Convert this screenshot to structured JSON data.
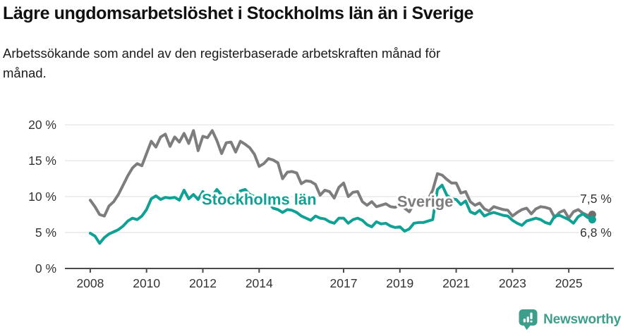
{
  "chart_data": {
    "type": "line",
    "title": "Lägre ungdomsarbetslöshet i Stockholms län än i Sverige",
    "subtitle": "Arbetssökande som andel av den registerbaserade arbetskraften månad för månad.",
    "unit": "%",
    "grid": "horizontal-only",
    "legend": "inline-series-labels",
    "x_axis": {
      "min": 2007.1,
      "max": 2026.6,
      "ticks": [
        {
          "v": 2008,
          "label": "2008"
        },
        {
          "v": 2010,
          "label": "2010"
        },
        {
          "v": 2012,
          "label": "2012"
        },
        {
          "v": 2014,
          "label": "2014"
        },
        {
          "v": 2017,
          "label": "2017"
        },
        {
          "v": 2019,
          "label": "2019"
        },
        {
          "v": 2021,
          "label": "2021"
        },
        {
          "v": 2023,
          "label": "2023"
        },
        {
          "v": 2025,
          "label": "2025"
        }
      ]
    },
    "ylim": [
      0,
      20.5
    ],
    "y_ticks": [
      {
        "v": 0,
        "label": "0 %"
      },
      {
        "v": 5,
        "label": "5 %"
      },
      {
        "v": 10,
        "label": "10 %"
      },
      {
        "v": 15,
        "label": "15 %"
      },
      {
        "v": 20,
        "label": "20 %"
      }
    ],
    "colors": {
      "grid": "#DEDEDE",
      "axis": "#4A4A4A",
      "tick_text": "#333333",
      "value_text": "#333333",
      "sverige": "#7D7D7D",
      "stockholm": "#10A195"
    },
    "series": [
      {
        "id": "sverige",
        "name": "Sverige",
        "color": "#7D7D7D",
        "dot_color": "#6E6E6E",
        "end_dot": true,
        "label": {
          "text": "Sverige",
          "x": 2019.9,
          "y": 8.6
        },
        "end_label": {
          "text": "7,5 %",
          "x": 2025.4,
          "y": 9.1
        },
        "last_value_label": "7,5 %",
        "x_start": 2008.0,
        "x_step_months": 2,
        "values": [
          9.5,
          8.6,
          7.5,
          7.3,
          8.7,
          9.3,
          10.3,
          11.6,
          12.9,
          14.0,
          14.6,
          14.3,
          16.0,
          17.7,
          16.9,
          18.3,
          18.7,
          17.0,
          18.3,
          17.6,
          18.8,
          17.4,
          19.2,
          16.4,
          18.4,
          18.2,
          19.2,
          17.8,
          16.0,
          17.5,
          17.6,
          16.2,
          17.7,
          17.3,
          16.8,
          15.9,
          14.2,
          14.6,
          15.3,
          15.1,
          14.7,
          12.5,
          13.4,
          13.5,
          13.3,
          11.8,
          12.2,
          12.1,
          11.7,
          10.2,
          10.9,
          10.7,
          9.8,
          11.3,
          11.9,
          10.0,
          10.6,
          10.7,
          9.3,
          8.8,
          9.3,
          8.6,
          8.8,
          9.0,
          8.6,
          8.5,
          8.9,
          8.4,
          7.9,
          9.0,
          8.8,
          9.2,
          9.6,
          10.9,
          13.2,
          13.0,
          12.4,
          11.9,
          11.9,
          10.5,
          10.7,
          9.3,
          8.8,
          9.1,
          8.3,
          8.0,
          8.6,
          8.4,
          8.2,
          8.1,
          7.3,
          7.8,
          8.2,
          8.4,
          7.6,
          8.3,
          8.6,
          8.5,
          8.3,
          7.1,
          7.8,
          8.1,
          7.0,
          7.9,
          8.2,
          7.7,
          7.4,
          7.5
        ]
      },
      {
        "id": "stockholm",
        "name": "Stockholms län",
        "color": "#10A195",
        "dot_color": "#10A195",
        "end_dot": true,
        "label": {
          "text": "Stockholms län",
          "x": 2014.0,
          "y": 8.9
        },
        "end_label": {
          "text": "6,8 %",
          "x": 2025.4,
          "y": 4.4
        },
        "last_value_label": "6,8 %",
        "x_start": 2008.0,
        "x_step_months": 2,
        "values": [
          4.9,
          4.5,
          3.5,
          4.3,
          4.8,
          5.1,
          5.4,
          5.9,
          6.6,
          7.0,
          6.8,
          7.3,
          8.2,
          9.7,
          10.1,
          9.6,
          9.9,
          9.8,
          9.9,
          9.5,
          10.9,
          9.7,
          10.3,
          9.6,
          10.7,
          9.6,
          10.1,
          11.0,
          10.2,
          9.7,
          10.2,
          9.8,
          10.8,
          11.0,
          10.3,
          10.0,
          9.6,
          8.9,
          9.1,
          8.4,
          8.2,
          7.8,
          8.2,
          8.1,
          7.8,
          7.3,
          7.0,
          6.7,
          7.3,
          7.0,
          6.9,
          6.5,
          6.3,
          7.0,
          7.0,
          6.3,
          6.8,
          7.0,
          6.7,
          6.1,
          5.8,
          6.5,
          6.2,
          6.3,
          5.9,
          5.7,
          5.8,
          5.2,
          5.5,
          6.3,
          6.4,
          6.4,
          6.6,
          6.8,
          11.0,
          11.6,
          10.2,
          9.7,
          9.6,
          8.9,
          9.4,
          7.9,
          7.6,
          8.1,
          7.3,
          7.6,
          7.8,
          7.6,
          7.4,
          7.3,
          6.7,
          6.3,
          6.0,
          6.6,
          6.8,
          7.0,
          6.8,
          6.4,
          6.2,
          7.3,
          7.4,
          7.1,
          6.8,
          6.3,
          7.2,
          7.6,
          7.1,
          6.8
        ]
      }
    ]
  },
  "footer": {
    "brand": "Newsworthy"
  }
}
